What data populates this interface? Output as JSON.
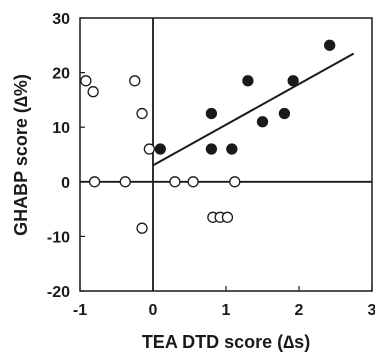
{
  "chart_data": {
    "type": "scatter",
    "xlabel": "TEA DTD score (∆s)",
    "ylabel": "GHABP score  (∆%)",
    "xlim": [
      -1,
      3
    ],
    "ylim": [
      -20,
      30
    ],
    "xticks": [
      "-1",
      "0",
      "1",
      "2",
      "3"
    ],
    "yticks": [
      "30",
      "20",
      "10",
      "0",
      "-10",
      "-20"
    ],
    "grid": false,
    "zero_lines": true,
    "series": [
      {
        "marker": "open-circle",
        "color": "#1a1a1a",
        "points": [
          [
            -0.92,
            18.5
          ],
          [
            -0.82,
            16.5
          ],
          [
            -0.8,
            0
          ],
          [
            -0.38,
            0
          ],
          [
            -0.25,
            18.5
          ],
          [
            -0.15,
            12.5
          ],
          [
            -0.15,
            -8.5
          ],
          [
            -0.05,
            6
          ],
          [
            0.3,
            0
          ],
          [
            0.55,
            0
          ],
          [
            0.82,
            -6.5
          ],
          [
            0.92,
            -6.5
          ],
          [
            1.02,
            -6.5
          ],
          [
            1.12,
            0
          ]
        ]
      },
      {
        "marker": "filled-circle",
        "color": "#1a1a1a",
        "points": [
          [
            0.1,
            6
          ],
          [
            0.8,
            12.5
          ],
          [
            0.8,
            6
          ],
          [
            1.08,
            6
          ],
          [
            1.3,
            18.5
          ],
          [
            1.5,
            11
          ],
          [
            1.8,
            12.5
          ],
          [
            1.92,
            18.5
          ],
          [
            2.42,
            25
          ]
        ]
      }
    ],
    "trendline": {
      "x": [
        0.0,
        2.75
      ],
      "y": [
        3,
        23.5
      ]
    }
  }
}
